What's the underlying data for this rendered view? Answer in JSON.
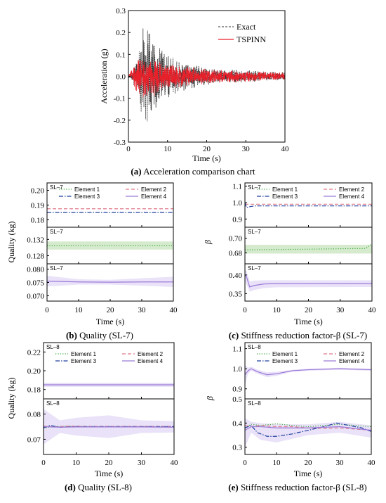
{
  "chart_data": [
    {
      "id": "a",
      "type": "line",
      "caption_letter": "(a)",
      "caption_text": " Acceleration comparison chart",
      "xlabel": "Time (s)",
      "ylabel": "Acceleration (g)",
      "xlim": [
        0,
        40
      ],
      "ylim": [
        -0.3,
        0.3
      ],
      "xticks": [
        "0",
        "10",
        "20",
        "30",
        "40"
      ],
      "yticks": [
        "-0.3",
        "-0.2",
        "-0.1",
        "0.0",
        "0.1",
        "0.2",
        "0.3"
      ],
      "legend_position": "top-right",
      "series": [
        {
          "name": "Exact",
          "color": "#333333",
          "style": "dashed"
        },
        {
          "name": "TSPINN",
          "color": "#e8202a",
          "style": "solid"
        }
      ],
      "envelope": {
        "t": [
          0,
          1,
          2,
          3,
          4,
          5,
          6,
          7,
          8,
          9,
          10,
          12,
          14,
          16,
          18,
          20,
          22,
          25,
          28,
          31,
          34,
          37,
          40
        ],
        "exact_amp": [
          0.005,
          0.03,
          0.08,
          0.15,
          0.25,
          0.22,
          0.24,
          0.17,
          0.14,
          0.12,
          0.1,
          0.08,
          0.07,
          0.06,
          0.05,
          0.045,
          0.04,
          0.035,
          0.03,
          0.028,
          0.025,
          0.022,
          0.02
        ],
        "tspinn_amp": [
          0.005,
          0.04,
          0.08,
          0.09,
          0.1,
          0.09,
          0.1,
          0.09,
          0.08,
          0.07,
          0.06,
          0.055,
          0.05,
          0.045,
          0.04,
          0.035,
          0.032,
          0.03,
          0.028,
          0.025,
          0.022,
          0.02,
          0.018
        ]
      }
    },
    {
      "id": "b",
      "type": "line",
      "caption_letter": "(b)",
      "caption_text": " Quality (SL-7)",
      "xlabel": "Time (s)",
      "ylabel": "Quality (kg)",
      "xlim": [
        0,
        40
      ],
      "xticks": [
        "0",
        "10",
        "20",
        "30",
        "40"
      ],
      "legend": [
        "Element 1",
        "Element 2",
        "Element 3",
        "Element 4"
      ],
      "panel_labels": [
        "SL–7",
        "SL–7",
        "SL–7"
      ],
      "subpanels": [
        {
          "ylim": [
            0.175,
            0.205
          ],
          "yticks": [
            "0.18",
            "0.19",
            "0.20"
          ],
          "lines": [
            {
              "series": "Element 2",
              "t": [
                0,
                40
              ],
              "y": [
                0.1875,
                0.1875
              ]
            },
            {
              "series": "Element 3",
              "t": [
                0,
                40
              ],
              "y": [
                0.185,
                0.185
              ]
            }
          ]
        },
        {
          "ylim": [
            0.126,
            0.135
          ],
          "yticks": [
            "0.128",
            "0.132"
          ],
          "lines": [
            {
              "series": "Element 1",
              "t": [
                0,
                40
              ],
              "y": [
                0.1305,
                0.1305
              ],
              "band": [
                0.1295,
                0.1315
              ]
            }
          ]
        },
        {
          "ylim": [
            0.068,
            0.082
          ],
          "yticks": [
            "0.070",
            "0.075",
            "0.080"
          ],
          "lines": [
            {
              "series": "Element 4",
              "t": [
                0,
                10,
                20,
                30,
                40
              ],
              "y": [
                0.0755,
                0.0752,
                0.0751,
                0.0752,
                0.0752
              ],
              "band_lo": [
                0.0735,
                0.0742,
                0.0742,
                0.0738,
                0.0733
              ],
              "band_hi": [
                0.0775,
                0.0762,
                0.076,
                0.0766,
                0.0771
              ]
            }
          ]
        }
      ]
    },
    {
      "id": "c",
      "type": "line",
      "caption_letter": "(c)",
      "caption_text": " Stiffness reduction factor-β (SL-7)",
      "xlabel": "Time (s)",
      "ylabel": "β",
      "xlim": [
        0,
        40
      ],
      "xticks": [
        "0",
        "10",
        "20",
        "30",
        "40"
      ],
      "legend": [
        "Element 1",
        "Element 2",
        "Element 3",
        "Element 4"
      ],
      "panel_labels": [
        "SL–7",
        "SL–7",
        "SL–7"
      ],
      "subpanels": [
        {
          "ylim": [
            0.85,
            1.12
          ],
          "yticks": [
            "0.9",
            "1.0",
            "1.1"
          ],
          "lines": [
            {
              "series": "Element 2",
              "t": [
                0,
                40
              ],
              "y": [
                0.99,
                0.99
              ]
            },
            {
              "series": "Element 3",
              "t": [
                0,
                0.5,
                1.5,
                3,
                40
              ],
              "y": [
                1.0,
                0.97,
                0.975,
                0.98,
                0.98
              ]
            }
          ]
        },
        {
          "ylim": [
            0.665,
            0.715
          ],
          "yticks": [
            "0.68",
            "0.70"
          ],
          "lines": [
            {
              "series": "Element 1",
              "t": [
                0,
                20,
                38,
                40
              ],
              "y": [
                0.684,
                0.685,
                0.686,
                0.692
              ],
              "band": [
                0.679,
                0.691
              ]
            }
          ]
        },
        {
          "ylim": [
            0.33,
            0.43
          ],
          "yticks": [
            "0.35",
            "0.40"
          ],
          "lines": [
            {
              "series": "Element 4",
              "t": [
                0,
                0.5,
                1.5,
                3,
                6,
                10,
                40
              ],
              "y": [
                0.4,
                0.395,
                0.368,
                0.372,
                0.376,
                0.377,
                0.377
              ],
              "band_lo": [
                0.385,
                0.375,
                0.355,
                0.36,
                0.365,
                0.367,
                0.368
              ],
              "band_hi": [
                0.415,
                0.41,
                0.383,
                0.385,
                0.386,
                0.386,
                0.386
              ]
            }
          ]
        }
      ]
    },
    {
      "id": "d",
      "type": "line",
      "caption_letter": "(d)",
      "caption_text": " Quality (SL-8)",
      "xlabel": "Time (s)",
      "ylabel": "Quality (kg)",
      "xlim": [
        0,
        40
      ],
      "xticks": [
        "0",
        "10",
        "20",
        "30",
        "40"
      ],
      "legend": [
        "Element 1",
        "Element 2",
        "Element 3",
        "Element 4"
      ],
      "panel_labels": [
        "SL–8",
        "SL–8"
      ],
      "subpanels": [
        {
          "ylim": [
            0.17,
            0.23
          ],
          "yticks": [
            "0.18",
            "0.20",
            "0.22"
          ],
          "lines": [
            {
              "series": "Element 4",
              "t": [
                0,
                40
              ],
              "y": [
                0.185,
                0.185
              ],
              "band": [
                0.183,
                0.187
              ]
            }
          ]
        },
        {
          "ylim": [
            0.064,
            0.086
          ],
          "yticks": [
            "0.07",
            "0.08"
          ],
          "lines": [
            {
              "series": "Element 1",
              "t": [
                0,
                3,
                8,
                15,
                25,
                40
              ],
              "y": [
                0.0745,
                0.075,
                0.0752,
                0.075,
                0.0749,
                0.0749
              ]
            },
            {
              "series": "Element 2",
              "t": [
                0,
                3,
                8,
                15,
                25,
                40
              ],
              "y": [
                0.0752,
                0.0749,
                0.0752,
                0.0751,
                0.0751,
                0.0751
              ]
            },
            {
              "series": "Element 3",
              "t": [
                0,
                2,
                5,
                10,
                20,
                40
              ],
              "y": [
                0.0745,
                0.0755,
                0.0748,
                0.075,
                0.075,
                0.075
              ]
            },
            {
              "series": "Element 4",
              "t": [
                0,
                5,
                10,
                20,
                30,
                40
              ],
              "y": [
                0.075,
                0.0748,
                0.0749,
                0.0749,
                0.0749,
                0.0748
              ],
              "band_lo": [
                0.068,
                0.0725,
                0.0715,
                0.0705,
                0.0725,
                0.0727
              ],
              "band_hi": [
                0.082,
                0.0775,
                0.0785,
                0.0795,
                0.0775,
                0.0772
              ]
            }
          ]
        }
      ]
    },
    {
      "id": "e",
      "type": "line",
      "caption_letter": "(e)",
      "caption_text": " Stiffness reduction factor-β (SL-8)",
      "xlabel": "Time (s)",
      "ylabel": "β",
      "xlim": [
        0,
        40
      ],
      "xticks": [
        "0",
        "10",
        "20",
        "30",
        "40"
      ],
      "legend": [
        "Element 1",
        "Element 2",
        "Element 3",
        "Element 4"
      ],
      "panel_labels": [
        "SL–8",
        "SL–8"
      ],
      "subpanels": [
        {
          "ylim": [
            0.85,
            1.13
          ],
          "yticks": [
            "0.9",
            "1.0",
            "1.1"
          ],
          "lines": [
            {
              "series": "Element 4",
              "t": [
                0,
                1,
                2,
                4,
                7,
                10,
                15,
                20,
                30,
                40
              ],
              "y": [
                0.97,
                0.99,
                1.0,
                0.985,
                0.97,
                0.975,
                0.99,
                0.995,
                1.0,
                0.995
              ],
              "band_lo": [
                0.92,
                0.975,
                0.99,
                0.975,
                0.958,
                0.965,
                0.985,
                0.99,
                0.995,
                0.99
              ],
              "band_hi": [
                1.02,
                1.005,
                1.01,
                0.995,
                0.982,
                0.985,
                0.995,
                1.0,
                1.005,
                1.0
              ]
            }
          ]
        },
        {
          "ylim": [
            0.27,
            0.5
          ],
          "yticks": [
            "0.3",
            "0.4",
            "0.5"
          ],
          "lines": [
            {
              "series": "Element 1",
              "t": [
                0,
                2,
                5,
                10,
                15,
                20,
                25,
                30,
                35,
                40
              ],
              "y": [
                0.38,
                0.395,
                0.39,
                0.397,
                0.39,
                0.385,
                0.39,
                0.395,
                0.39,
                0.385
              ]
            },
            {
              "series": "Element 2",
              "t": [
                0,
                2,
                5,
                10,
                15,
                20,
                25,
                30,
                35,
                40
              ],
              "y": [
                0.39,
                0.385,
                0.39,
                0.385,
                0.385,
                0.38,
                0.378,
                0.38,
                0.375,
                0.37
              ]
            },
            {
              "series": "Element 3",
              "t": [
                0,
                2,
                4,
                7,
                10,
                15,
                20,
                25,
                29,
                33,
                37,
                40
              ],
              "y": [
                0.38,
                0.39,
                0.36,
                0.345,
                0.345,
                0.355,
                0.37,
                0.385,
                0.4,
                0.39,
                0.38,
                0.365
              ]
            },
            {
              "series": "Element 4",
              "t": [
                0,
                2,
                5,
                10,
                20,
                30,
                40
              ],
              "y": [
                0.37,
                0.385,
                0.385,
                0.38,
                0.38,
                0.385,
                0.37
              ],
              "band_lo": [
                0.3,
                0.36,
                0.33,
                0.32,
                0.35,
                0.36,
                0.34
              ],
              "band_hi": [
                0.42,
                0.405,
                0.4,
                0.395,
                0.395,
                0.405,
                0.39
              ]
            }
          ]
        }
      ]
    }
  ],
  "element_colors": {
    "Element 1": "#3aa83a",
    "Element 2": "#e07a8a",
    "Element 3": "#1f3f9e",
    "Element 4": "#9b7ad8"
  },
  "band_colors": {
    "Element 1": "#cfe8c6",
    "Element 2": "#f6d3da",
    "Element 3": "#c9d2ee",
    "Element 4": "#e2d8f5"
  }
}
